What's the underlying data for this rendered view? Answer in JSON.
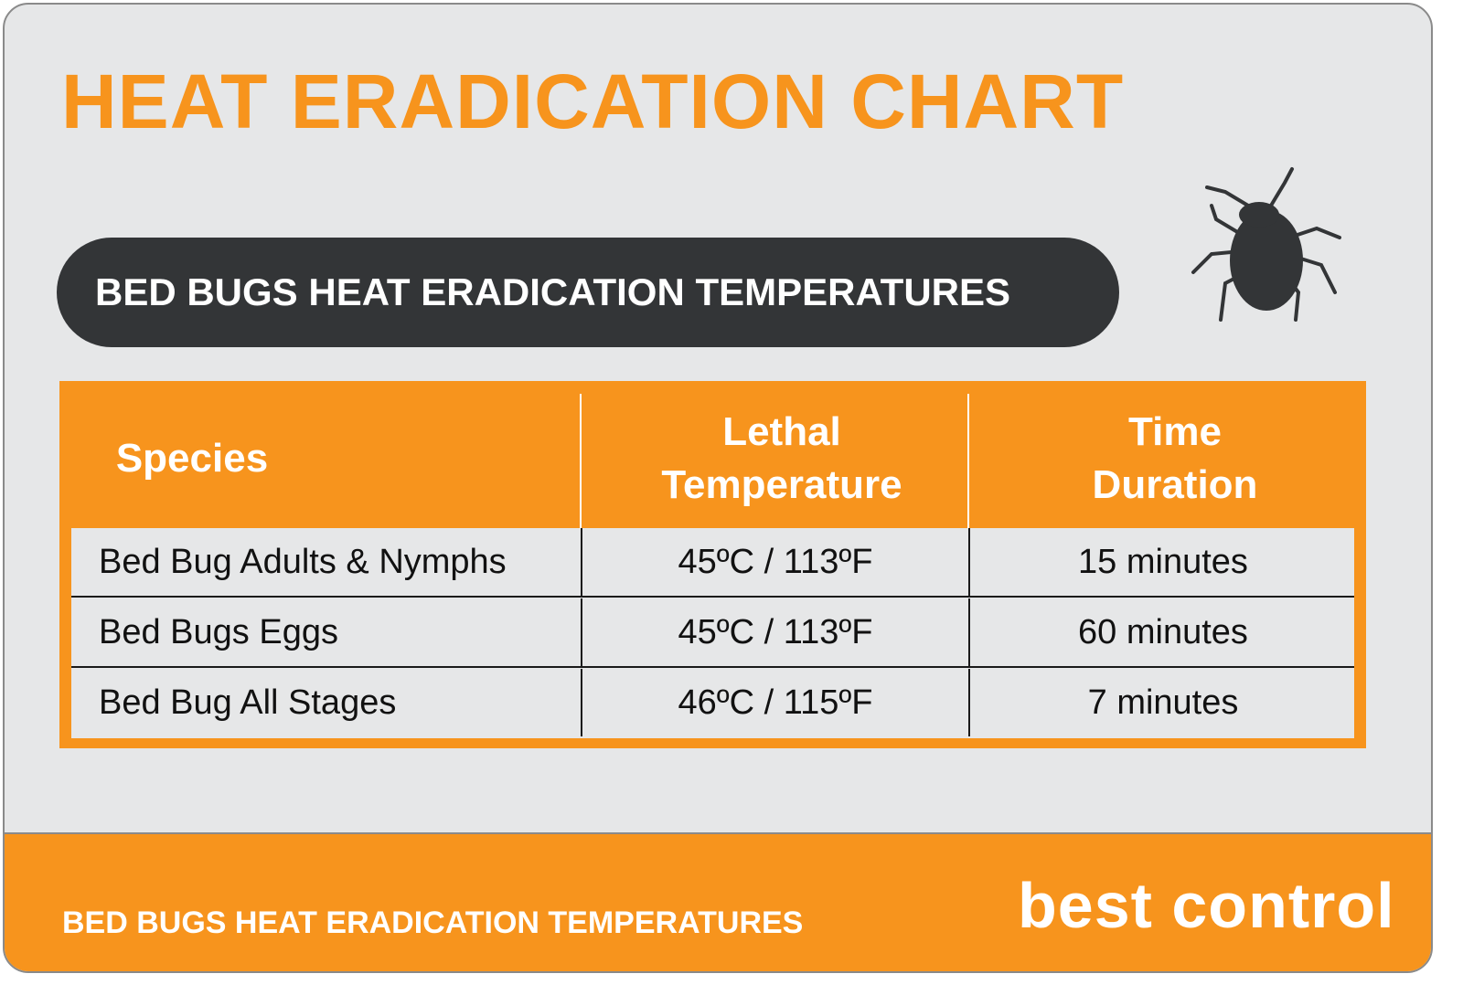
{
  "header": {
    "title": "HEAT ERADICATION CHART"
  },
  "banner": {
    "text": "BED BUGS HEAT ERADICATION TEMPERATURES"
  },
  "table": {
    "headers": [
      "Species",
      "Lethal Temperature",
      "Time Duration"
    ],
    "rows": [
      [
        "Bed Bug Adults & Nymphs",
        "45ºC / 113ºF",
        "15 minutes"
      ],
      [
        "Bed Bugs Eggs",
        "45ºC / 113ºF",
        "60 minutes"
      ],
      [
        "Bed Bug All Stages",
        "46ºC / 115ºF",
        "7 minutes"
      ]
    ]
  },
  "footer": {
    "text": "BED BUGS HEAT ERADICATION TEMPERATURES",
    "logo": "best control"
  }
}
